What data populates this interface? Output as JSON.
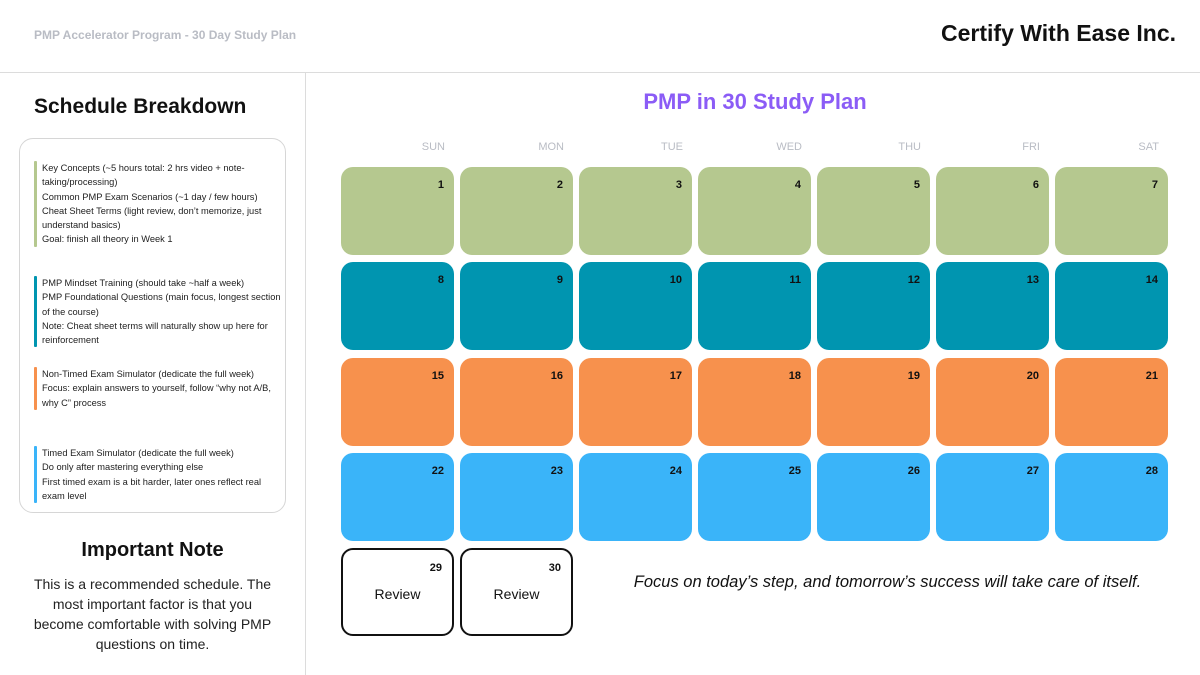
{
  "header": {
    "subtitle": "PMP Accelerator Program - 30 Day Study Plan",
    "company": "Certify With Ease Inc."
  },
  "sidebar": {
    "title": "Schedule Breakdown",
    "groups": [
      {
        "color": "#b5c88f",
        "lines": [
          "Key Concepts (~5 hours total: 2 hrs video + note-taking/processing)",
          "Common PMP Exam Scenarios (~1 day / few hours)",
          "Cheat Sheet Terms (light review, don’t memorize, just understand basics)",
          "Goal: finish all theory in Week 1"
        ]
      },
      {
        "color": "#0095b0",
        "lines": [
          "PMP Mindset Training (should take ~half a week)",
          "PMP Foundational Questions (main focus, longest section of the course)",
          "Note: Cheat sheet terms will naturally show up here for reinforcement"
        ]
      },
      {
        "color": "#f7914d",
        "lines": [
          "Non-Timed Exam Simulator (dedicate the full week)",
          "Focus: explain answers to yourself, follow “why not A/B, why C” process"
        ]
      },
      {
        "color": "#3ab4f9",
        "lines": [
          "Timed Exam Simulator (dedicate the full week)",
          "Do only after mastering everything else",
          "First timed exam is a bit harder, later ones reflect real exam level"
        ]
      }
    ],
    "note_title": "Important Note",
    "note_text": "This is a recommended schedule. The most important factor is that you become comfortable with solving PMP questions on time."
  },
  "calendar": {
    "title": "PMP in 30 Study Plan",
    "days": [
      "SUN",
      "MON",
      "TUE",
      "WED",
      "THU",
      "FRI",
      "SAT"
    ],
    "week_colors": [
      "#b5c88f",
      "#0095b0",
      "#f7914d",
      "#3ab4f9"
    ],
    "weeks": [
      [
        "1",
        "2",
        "3",
        "4",
        "5",
        "6",
        "7"
      ],
      [
        "8",
        "9",
        "10",
        "11",
        "12",
        "13",
        "14"
      ],
      [
        "15",
        "16",
        "17",
        "18",
        "19",
        "20",
        "21"
      ],
      [
        "22",
        "23",
        "24",
        "25",
        "26",
        "27",
        "28"
      ]
    ],
    "review_days": [
      {
        "num": "29",
        "label": "Review"
      },
      {
        "num": "30",
        "label": "Review"
      }
    ]
  },
  "quote": "Focus on today’s step, and tomorrow’s success will take care of itself."
}
